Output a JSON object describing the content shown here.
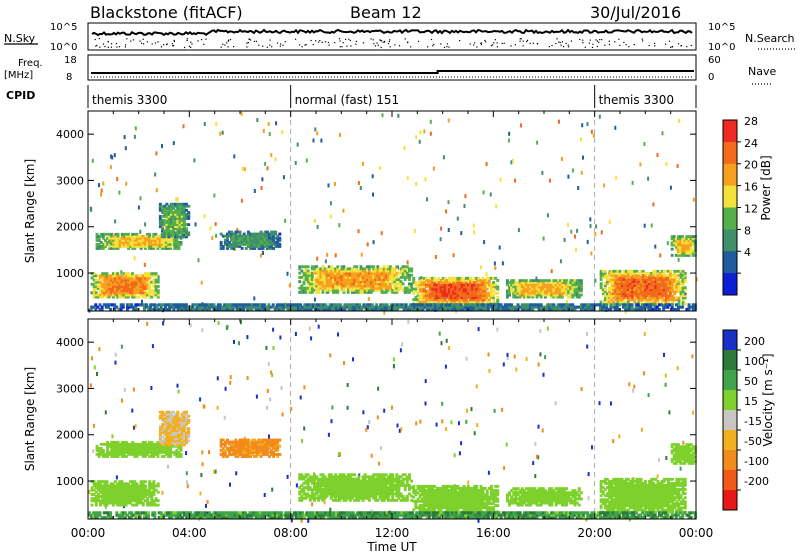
{
  "header": {
    "station": "Blackstone (fitACF)",
    "beam": "Beam 12",
    "date": "30/Jul/2016"
  },
  "top_panels": {
    "nsky_label": "N.Sky",
    "nsearch_label": "N.Search",
    "nsky_ticks": [
      "10^5",
      "10^0"
    ],
    "nsearch_ticks": [
      "10^5",
      "10^0"
    ],
    "freq_label_1": "Freq.",
    "freq_label_2": "[MHz]",
    "freq_ticks": [
      "18",
      "8"
    ],
    "nave_label": "Nave",
    "nave_ticks": [
      "60",
      "0"
    ],
    "cpid_label": "CPID",
    "cpid_segments": [
      {
        "label": "themis 3300",
        "start_hour": 0,
        "end_hour": 8
      },
      {
        "label": "normal (fast) 151",
        "start_hour": 8,
        "end_hour": 20
      },
      {
        "label": "themis 3300",
        "start_hour": 20,
        "end_hour": 24
      }
    ]
  },
  "chart_data": [
    {
      "type": "heatmap",
      "panel": "power",
      "ylabel": "Slant Range [km]",
      "yticks": [
        "1000",
        "2000",
        "3000",
        "4000"
      ],
      "ylim": [
        180,
        4500
      ],
      "colorbar_label": "Power [dB]",
      "colorbar_ticks": [
        "28",
        "24",
        "20",
        "16",
        "12",
        "8",
        "4"
      ],
      "colorbar_range": [
        0,
        32
      ],
      "colors": [
        "#0d1fd6",
        "#1f5ca0",
        "#3f8f6a",
        "#56b04a",
        "#f2e23a",
        "#f7a020",
        "#f26a1c",
        "#ee2a20"
      ],
      "echo_regions": [
        {
          "t0": 0.3,
          "t1": 3.7,
          "r0": 1500,
          "r1": 1850,
          "power": 20
        },
        {
          "t0": 2.8,
          "t1": 4.0,
          "r0": 1750,
          "r1": 2500,
          "power": 14
        },
        {
          "t0": 5.2,
          "t1": 7.6,
          "r0": 1500,
          "r1": 1900,
          "power": 11
        },
        {
          "t0": 0.1,
          "t1": 2.8,
          "r0": 450,
          "r1": 1000,
          "power": 24
        },
        {
          "t0": 8.3,
          "t1": 12.8,
          "r0": 550,
          "r1": 1150,
          "power": 22
        },
        {
          "t0": 12.8,
          "t1": 16.2,
          "r0": 300,
          "r1": 900,
          "power": 27
        },
        {
          "t0": 16.5,
          "t1": 19.5,
          "r0": 450,
          "r1": 850,
          "power": 21
        },
        {
          "t0": 20.2,
          "t1": 23.6,
          "r0": 300,
          "r1": 1050,
          "power": 26
        },
        {
          "t0": 23.0,
          "t1": 24.0,
          "r0": 1350,
          "r1": 1800,
          "power": 20
        },
        {
          "t0": 0.0,
          "t1": 24.0,
          "r0": 180,
          "r1": 330,
          "power": 9
        }
      ]
    },
    {
      "type": "heatmap",
      "panel": "velocity",
      "ylabel": "Slant Range [km]",
      "yticks": [
        "1000",
        "2000",
        "3000",
        "4000"
      ],
      "ylim": [
        180,
        4500
      ],
      "xlabel": "Time UT",
      "xticks": [
        "00:00",
        "04:00",
        "08:00",
        "12:00",
        "16:00",
        "20:00",
        "00:00"
      ],
      "xlim": [
        0,
        24
      ],
      "colorbar_label": "Velocity [m s⁻¹]",
      "colorbar_ticks": [
        "200",
        "100",
        "50",
        "15",
        "-15",
        "-50",
        "-100",
        "-200"
      ],
      "colors": [
        "#1a2fc8",
        "#2e7a3c",
        "#3fa34a",
        "#7ed12c",
        "#c8c6c0",
        "#f2b020",
        "#f28a1c",
        "#f05a16",
        "#e81818"
      ],
      "echo_regions": [
        {
          "t0": 0.3,
          "t1": 3.7,
          "r0": 1500,
          "r1": 1850,
          "velocity": 0
        },
        {
          "t0": 2.8,
          "t1": 4.0,
          "r0": 1750,
          "r1": 2500,
          "velocity": -60
        },
        {
          "t0": 5.2,
          "t1": 7.6,
          "r0": 1500,
          "r1": 1900,
          "velocity": -120
        },
        {
          "t0": 0.1,
          "t1": 2.8,
          "r0": 450,
          "r1": 1000,
          "velocity": 0
        },
        {
          "t0": 8.3,
          "t1": 12.8,
          "r0": 550,
          "r1": 1150,
          "velocity": 0
        },
        {
          "t0": 12.8,
          "t1": 16.2,
          "r0": 300,
          "r1": 900,
          "velocity": 0
        },
        {
          "t0": 16.5,
          "t1": 19.5,
          "r0": 450,
          "r1": 850,
          "velocity": 0
        },
        {
          "t0": 20.2,
          "t1": 23.6,
          "r0": 300,
          "r1": 1050,
          "velocity": 0
        },
        {
          "t0": 23.0,
          "t1": 24.0,
          "r0": 1350,
          "r1": 1800,
          "velocity": 0
        },
        {
          "t0": 0.0,
          "t1": 24.0,
          "r0": 180,
          "r1": 330,
          "velocity": 40
        }
      ]
    }
  ]
}
